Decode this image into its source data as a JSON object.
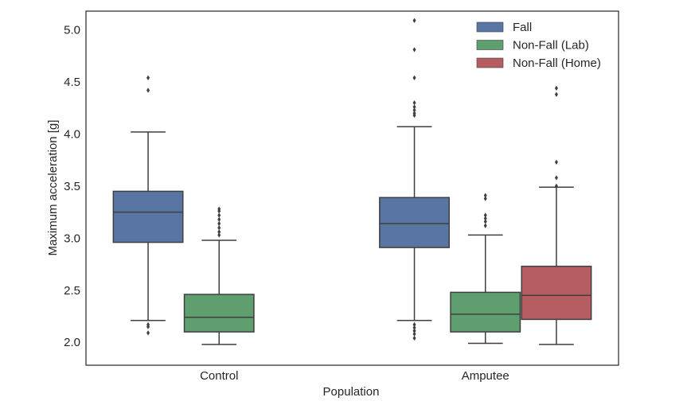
{
  "chart_data": {
    "type": "box",
    "title": "",
    "xlabel": "Population",
    "ylabel": "Maximum acceleration [g]",
    "ylim": [
      1.78,
      5.18
    ],
    "yticks": [
      2.0,
      2.5,
      3.0,
      3.5,
      4.0,
      4.5,
      5.0
    ],
    "ytick_labels": [
      "2.0",
      "2.5",
      "3.0",
      "3.5",
      "4.0",
      "4.5",
      "5.0"
    ],
    "grid": false,
    "legend_position": "top-right",
    "categories": [
      "Control",
      "Amputee"
    ],
    "series": [
      {
        "name": "Fall",
        "color": "#5975a4",
        "boxes": [
          {
            "category": "Control",
            "whisker_low": 2.21,
            "q1": 2.96,
            "median": 3.25,
            "q3": 3.45,
            "whisker_high": 4.02,
            "outliers": [
              4.54,
              4.42,
              2.17,
              2.15,
              2.09
            ]
          },
          {
            "category": "Amputee",
            "whisker_low": 2.21,
            "q1": 2.91,
            "median": 3.14,
            "q3": 3.39,
            "whisker_high": 4.07,
            "outliers": [
              5.09,
              4.81,
              4.54,
              4.3,
              4.26,
              4.23,
              4.2,
              4.18,
              2.17,
              2.14,
              2.11,
              2.08,
              2.04
            ]
          }
        ]
      },
      {
        "name": "Non-Fall (Lab)",
        "color": "#5f9e6e",
        "boxes": [
          {
            "category": "Control",
            "whisker_low": 1.98,
            "q1": 2.1,
            "median": 2.24,
            "q3": 2.46,
            "whisker_high": 2.98,
            "outliers": [
              3.28,
              3.26,
              3.22,
              3.18,
              3.14,
              3.1,
              3.06,
              3.03
            ]
          },
          {
            "category": "Amputee",
            "whisker_low": 1.99,
            "q1": 2.1,
            "median": 2.27,
            "q3": 2.48,
            "whisker_high": 3.03,
            "outliers": [
              3.41,
              3.38,
              3.22,
              3.19,
              3.16,
              3.12
            ]
          }
        ]
      },
      {
        "name": "Non-Fall (Home)",
        "color": "#b55d60",
        "boxes": [
          {
            "category": "Amputee",
            "whisker_low": 1.98,
            "q1": 2.22,
            "median": 2.45,
            "q3": 2.73,
            "whisker_high": 3.49,
            "outliers": [
              4.44,
              4.38,
              3.73,
              3.58,
              3.5
            ]
          }
        ]
      }
    ]
  },
  "colors": {
    "line": "#3f3f3f",
    "frame": "#262626",
    "text": "#262626"
  }
}
